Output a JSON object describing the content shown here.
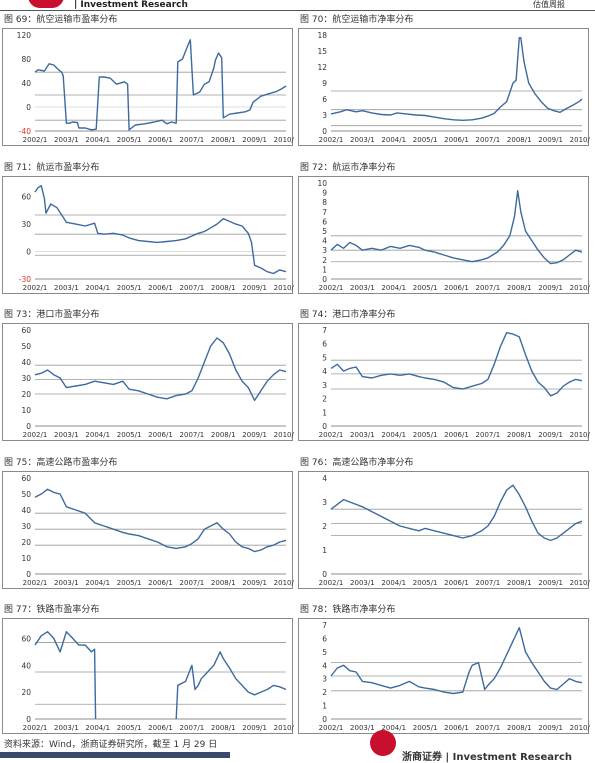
{
  "header": {
    "left": "| Investment Research",
    "right": "估值周报"
  },
  "footer": {
    "source": "资料来源：Wind，浙商证券研究所，截至 1 月 29 日",
    "brand": "浙商证券 | Investment Research"
  },
  "colors": {
    "line": "#3d6a9e",
    "grid": "#9a9a9a",
    "axis_text": "#333333",
    "negative_text": "#d9342b"
  },
  "x_ticks": [
    "2002/1",
    "2003/1",
    "2004/1",
    "2005/1",
    "2006/1",
    "2007/1",
    "2008/1",
    "2009/1",
    "2010/1"
  ],
  "chart_data": [
    {
      "id": "c69",
      "type": "line",
      "title": "图 69：航空运输市盈率分布",
      "ylim": [
        -40,
        120
      ],
      "yticks": [
        -40,
        0,
        40,
        80,
        120
      ],
      "hlines": [
        58,
        20,
        -22
      ],
      "x": [
        2002.0,
        2002.1,
        2002.3,
        2002.45,
        2002.6,
        2002.75,
        2002.85,
        2002.9,
        2003.0,
        2003.1,
        2003.2,
        2003.35,
        2003.4,
        2003.6,
        2003.8,
        2003.95,
        2004.05,
        2004.2,
        2004.4,
        2004.6,
        2004.85,
        2004.95,
        2005.0,
        2005.2,
        2005.5,
        2005.8,
        2006.05,
        2006.2,
        2006.35,
        2006.5,
        2006.55,
        2006.7,
        2006.85,
        2006.95,
        2007.05,
        2007.25,
        2007.4,
        2007.55,
        2007.7,
        2007.75,
        2007.85,
        2007.95,
        2008.0,
        2008.2,
        2008.45,
        2008.7,
        2008.85,
        2008.95,
        2009.2,
        2009.45,
        2009.7,
        2009.85,
        2010.0
      ],
      "y": [
        58,
        62,
        60,
        72,
        70,
        62,
        58,
        52,
        -27,
        -27,
        -25,
        -26,
        -35,
        -35,
        -38,
        -37,
        50,
        50,
        48,
        38,
        42,
        38,
        -38,
        -30,
        -28,
        -25,
        -22,
        -28,
        -25,
        -27,
        75,
        80,
        100,
        112,
        20,
        25,
        38,
        42,
        65,
        78,
        90,
        82,
        -18,
        -12,
        -10,
        -8,
        -5,
        8,
        18,
        22,
        26,
        30,
        35
      ]
    },
    {
      "id": "c70",
      "type": "line",
      "title": "图 70：航空运输市净率分布",
      "ylim": [
        0,
        18
      ],
      "yticks": [
        0,
        3,
        6,
        9,
        12,
        15,
        18
      ],
      "hlines": [
        7.5,
        4,
        1
      ],
      "x": [
        2002.0,
        2002.3,
        2002.5,
        2002.8,
        2003.0,
        2003.3,
        2003.6,
        2003.9,
        2004.1,
        2004.4,
        2004.7,
        2005.0,
        2005.3,
        2005.6,
        2005.9,
        2006.2,
        2006.5,
        2006.8,
        2007.0,
        2007.2,
        2007.4,
        2007.6,
        2007.8,
        2007.9,
        2008.0,
        2008.05,
        2008.15,
        2008.3,
        2008.5,
        2008.7,
        2008.9,
        2009.1,
        2009.3,
        2009.5,
        2009.7,
        2009.9,
        2010.0
      ],
      "y": [
        3.2,
        3.6,
        4,
        3.6,
        3.8,
        3.4,
        3.1,
        3,
        3.4,
        3.2,
        3,
        2.9,
        2.6,
        2.3,
        2.1,
        2,
        2.1,
        2.4,
        2.8,
        3.3,
        4.5,
        5.5,
        9,
        9.5,
        17.5,
        17.5,
        13,
        9,
        7,
        5.5,
        4.3,
        3.8,
        3.5,
        4.2,
        4.8,
        5.5,
        6
      ]
    },
    {
      "id": "c71",
      "type": "line",
      "title": "图 71：航运市盈率分布",
      "ylim": [
        -30,
        75
      ],
      "yticks": [
        -30,
        0,
        30,
        60
      ],
      "hlines": [
        40,
        19,
        -4
      ],
      "x": [
        2002.0,
        2002.1,
        2002.2,
        2002.3,
        2002.35,
        2002.5,
        2002.7,
        2003.0,
        2003.3,
        2003.6,
        2003.9,
        2004.0,
        2004.2,
        2004.5,
        2004.8,
        2005.0,
        2005.3,
        2005.6,
        2005.9,
        2006.2,
        2006.5,
        2006.8,
        2007.0,
        2007.2,
        2007.4,
        2007.6,
        2007.8,
        2008.0,
        2008.2,
        2008.4,
        2008.6,
        2008.8,
        2008.9,
        2009.0,
        2009.2,
        2009.4,
        2009.6,
        2009.8,
        2010.0
      ],
      "y": [
        65,
        70,
        72,
        58,
        42,
        52,
        48,
        32,
        30,
        28,
        31,
        20,
        19,
        20,
        18,
        15,
        12,
        11,
        10,
        11,
        12,
        14,
        17,
        20,
        22,
        26,
        30,
        36,
        33,
        30,
        28,
        20,
        10,
        -15,
        -18,
        -22,
        -24,
        -20,
        -22
      ]
    },
    {
      "id": "c72",
      "type": "line",
      "title": "图 72：航运市净率分布",
      "ylim": [
        0,
        10
      ],
      "yticks": [
        0,
        1,
        2,
        3,
        4,
        5,
        6,
        7,
        8,
        9,
        10
      ],
      "hlines": [
        4.5,
        3,
        1.8
      ],
      "x": [
        2002.0,
        2002.2,
        2002.4,
        2002.6,
        2002.8,
        2003.0,
        2003.3,
        2003.6,
        2003.9,
        2004.2,
        2004.5,
        2004.8,
        2005.0,
        2005.3,
        2005.6,
        2005.9,
        2006.2,
        2006.5,
        2006.8,
        2007.0,
        2007.3,
        2007.5,
        2007.7,
        2007.85,
        2007.95,
        2008.05,
        2008.2,
        2008.4,
        2008.6,
        2008.8,
        2009.0,
        2009.2,
        2009.4,
        2009.6,
        2009.8,
        2010.0
      ],
      "y": [
        3,
        3.6,
        3.2,
        3.8,
        3.5,
        3,
        3.2,
        3,
        3.4,
        3.2,
        3.5,
        3.3,
        3,
        2.8,
        2.5,
        2.2,
        2,
        1.8,
        2,
        2.2,
        2.8,
        3.5,
        4.5,
        6.5,
        9.2,
        7,
        5,
        4,
        3,
        2.2,
        1.6,
        1.7,
        2,
        2.5,
        3,
        2.8
      ]
    },
    {
      "id": "c73",
      "type": "line",
      "title": "图 73：港口市盈率分布",
      "ylim": [
        0,
        60
      ],
      "yticks": [
        0,
        10,
        20,
        30,
        40,
        50,
        60
      ],
      "hlines": [
        38,
        29,
        20
      ],
      "x": [
        2002.0,
        2002.2,
        2002.4,
        2002.6,
        2002.8,
        2003.0,
        2003.3,
        2003.6,
        2003.9,
        2004.2,
        2004.5,
        2004.8,
        2005.0,
        2005.3,
        2005.6,
        2005.9,
        2006.2,
        2006.5,
        2006.8,
        2007.0,
        2007.2,
        2007.4,
        2007.6,
        2007.8,
        2008.0,
        2008.2,
        2008.4,
        2008.6,
        2008.8,
        2009.0,
        2009.2,
        2009.4,
        2009.6,
        2009.8,
        2010.0
      ],
      "y": [
        32,
        33,
        35,
        32,
        30,
        24,
        25,
        26,
        28,
        27,
        26,
        28,
        23,
        22,
        20,
        18,
        17,
        19,
        20,
        22,
        30,
        40,
        50,
        55,
        52,
        45,
        35,
        28,
        24,
        16,
        22,
        28,
        32,
        35,
        34
      ]
    },
    {
      "id": "c74",
      "type": "line",
      "title": "图 74：港口市净率分布",
      "ylim": [
        0,
        7
      ],
      "yticks": [
        0,
        1,
        2,
        3,
        4,
        5,
        6,
        7
      ],
      "hlines": [
        4.8,
        3.8,
        2.7
      ],
      "x": [
        2002.0,
        2002.2,
        2002.4,
        2002.6,
        2002.8,
        2003.0,
        2003.3,
        2003.6,
        2003.9,
        2004.2,
        2004.5,
        2004.8,
        2005.0,
        2005.3,
        2005.6,
        2005.9,
        2006.2,
        2006.5,
        2006.8,
        2007.0,
        2007.2,
        2007.4,
        2007.6,
        2007.8,
        2008.0,
        2008.2,
        2008.4,
        2008.6,
        2008.8,
        2009.0,
        2009.2,
        2009.4,
        2009.6,
        2009.8,
        2010.0
      ],
      "y": [
        4.2,
        4.5,
        4,
        4.2,
        4.3,
        3.6,
        3.5,
        3.7,
        3.8,
        3.7,
        3.8,
        3.6,
        3.5,
        3.4,
        3.2,
        2.8,
        2.7,
        2.9,
        3.1,
        3.4,
        4.5,
        5.8,
        6.8,
        6.7,
        6.5,
        5.2,
        4,
        3.2,
        2.8,
        2.2,
        2.4,
        2.9,
        3.2,
        3.4,
        3.3
      ]
    },
    {
      "id": "c75",
      "type": "line",
      "title": "图 75：高速公路市盈率分布",
      "ylim": [
        0,
        60
      ],
      "yticks": [
        0,
        10,
        20,
        30,
        40,
        50,
        60
      ],
      "hlines": [
        38,
        28,
        18
      ],
      "x": [
        2002.0,
        2002.2,
        2002.4,
        2002.6,
        2002.8,
        2003.0,
        2003.3,
        2003.6,
        2003.9,
        2004.2,
        2004.5,
        2004.8,
        2005.0,
        2005.3,
        2005.6,
        2005.9,
        2006.2,
        2006.5,
        2006.8,
        2007.0,
        2007.2,
        2007.4,
        2007.6,
        2007.8,
        2008.0,
        2008.2,
        2008.4,
        2008.6,
        2008.8,
        2009.0,
        2009.2,
        2009.4,
        2009.6,
        2009.8,
        2010.0
      ],
      "y": [
        48,
        50,
        53,
        51,
        50,
        42,
        40,
        38,
        32,
        30,
        28,
        26,
        25,
        24,
        22,
        20,
        17,
        16,
        17,
        19,
        22,
        28,
        30,
        32,
        28,
        25,
        20,
        17,
        16,
        14,
        15,
        17,
        18,
        20,
        21
      ]
    },
    {
      "id": "c76",
      "type": "line",
      "title": "图 76：高速公路市净率分布",
      "ylim": [
        0,
        4
      ],
      "yticks": [
        0,
        1,
        2,
        3,
        4
      ],
      "hlines": [
        2.7,
        2.1,
        1.6
      ],
      "x": [
        2002.0,
        2002.2,
        2002.4,
        2002.6,
        2002.8,
        2003.0,
        2003.3,
        2003.6,
        2003.9,
        2004.2,
        2004.5,
        2004.8,
        2005.0,
        2005.3,
        2005.6,
        2005.9,
        2006.2,
        2006.5,
        2006.8,
        2007.0,
        2007.2,
        2007.4,
        2007.6,
        2007.8,
        2008.0,
        2008.2,
        2008.4,
        2008.6,
        2008.8,
        2009.0,
        2009.2,
        2009.4,
        2009.6,
        2009.8,
        2010.0
      ],
      "y": [
        2.7,
        2.9,
        3.1,
        3,
        2.9,
        2.8,
        2.6,
        2.4,
        2.2,
        2,
        1.9,
        1.8,
        1.9,
        1.8,
        1.7,
        1.6,
        1.5,
        1.6,
        1.8,
        2,
        2.4,
        3,
        3.5,
        3.7,
        3.3,
        2.8,
        2.2,
        1.7,
        1.5,
        1.4,
        1.5,
        1.7,
        1.9,
        2.1,
        2.2
      ]
    },
    {
      "id": "c77",
      "type": "line",
      "title": "图 77：铁路市盈率分布",
      "ylim": [
        0,
        70
      ],
      "yticks": [
        0,
        20,
        40,
        60
      ],
      "hlines": [
        57,
        35,
        11
      ],
      "x": [
        2002.0,
        2002.2,
        2002.4,
        2002.6,
        2002.8,
        2003.0,
        2003.2,
        2003.4,
        2003.6,
        2003.8,
        2003.9,
        2003.95,
        2004.0
      ],
      "y": [
        55,
        62,
        65,
        60,
        50,
        65,
        60,
        55,
        55,
        50,
        52,
        40,
        0
      ],
      "segments": [
        {
          "x": [
            2002.0,
            2002.2,
            2002.4,
            2002.6,
            2002.8,
            2003.0,
            2003.2,
            2003.4,
            2003.6,
            2003.8,
            2003.9,
            2003.93
          ],
          "y": [
            55,
            62,
            65,
            60,
            50,
            65,
            60,
            55,
            55,
            50,
            52,
            0
          ]
        },
        {
          "x": [
            2006.5,
            2006.55,
            2006.8,
            2007.0,
            2007.1,
            2007.2,
            2007.3,
            2007.5,
            2007.7,
            2007.9,
            2008.0,
            2008.2,
            2008.4,
            2008.6,
            2008.8,
            2009.0,
            2009.2,
            2009.4,
            2009.6,
            2009.8,
            2010.0
          ],
          "y": [
            0,
            25,
            28,
            40,
            22,
            25,
            30,
            35,
            40,
            50,
            45,
            38,
            30,
            25,
            20,
            18,
            20,
            22,
            25,
            24,
            22
          ]
        }
      ]
    },
    {
      "id": "c78",
      "type": "line",
      "title": "图 78：铁路市净率分布",
      "ylim": [
        0,
        7
      ],
      "yticks": [
        0,
        1,
        2,
        3,
        4,
        5,
        6,
        7
      ],
      "hlines": [
        4.2,
        3.2,
        2.1
      ],
      "x": [
        2002.0,
        2002.2,
        2002.4,
        2002.6,
        2002.8,
        2003.0,
        2003.3,
        2003.6,
        2003.9,
        2004.2,
        2004.5,
        2004.8,
        2005.0,
        2005.3,
        2005.6,
        2005.9,
        2006.2,
        2006.4,
        2006.5,
        2006.7,
        2006.9,
        2007.0,
        2007.2,
        2007.4,
        2007.6,
        2007.8,
        2008.0,
        2008.2,
        2008.4,
        2008.6,
        2008.8,
        2009.0,
        2009.2,
        2009.4,
        2009.6,
        2009.8,
        2010.0
      ],
      "y": [
        3.2,
        3.8,
        4,
        3.6,
        3.5,
        2.8,
        2.7,
        2.5,
        2.3,
        2.5,
        2.8,
        2.4,
        2.3,
        2.2,
        2,
        1.9,
        2,
        3.5,
        4,
        4.2,
        2.2,
        2.5,
        3,
        3.8,
        4.8,
        5.8,
        6.8,
        5,
        4.2,
        3.5,
        2.8,
        2.3,
        2.2,
        2.6,
        3,
        2.8,
        2.7
      ]
    }
  ]
}
